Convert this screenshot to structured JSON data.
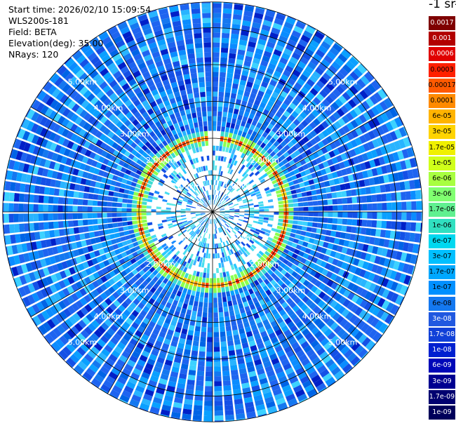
{
  "header": {
    "start_time": "Start time: 2026/02/10 15:09:54",
    "instrument": "WLS200s-181",
    "field": "Field: BETA",
    "elevation": "Elevation(deg): 35.00",
    "nrays": "NRays: 120"
  },
  "colorbar": {
    "unit_title": "-1 sr-",
    "labels": [
      "0.0017",
      "0.001",
      "0.0006",
      "0.0003",
      "0.00017",
      "0.0001",
      "6e-05",
      "3e-05",
      "1.7e-05",
      "1e-05",
      "6e-06",
      "3e-06",
      "1.7e-06",
      "1e-06",
      "6e-07",
      "3e-07",
      "1.7e-07",
      "1e-07",
      "6e-08",
      "3e-08",
      "1.7e-08",
      "1e-08",
      "6e-09",
      "3e-09",
      "1.7e-09",
      "1e-09"
    ],
    "colors": [
      "#7f0000",
      "#b20000",
      "#e00000",
      "#ff2000",
      "#ff5a00",
      "#ff8a00",
      "#ffb400",
      "#ffd400",
      "#f0f000",
      "#d0ff1a",
      "#a8ff40",
      "#80ff70",
      "#60f090",
      "#30e0c0",
      "#00d8f0",
      "#00c0ff",
      "#00a8ff",
      "#0090ff",
      "#1478f0",
      "#2058e0",
      "#1040d8",
      "#0020d0",
      "#0008b8",
      "#000090",
      "#000070",
      "#00005a"
    ]
  },
  "chart_data": {
    "type": "polar-ppi",
    "field": "BETA",
    "range_rings_km": [
      1,
      2,
      3,
      4,
      5
    ],
    "ring_labels": [
      "1.00km",
      "2.00km",
      "3.00km",
      "4.00km",
      "5.00km"
    ],
    "n_rays": 120,
    "elevation_deg": 35.0,
    "max_range_km": 5.7,
    "spoke_angles_deg": [
      0,
      30,
      60,
      90,
      120,
      150,
      180,
      210,
      240,
      270,
      300,
      330
    ],
    "background_band_km": [
      2.2,
      5.7
    ],
    "inner_band_km": [
      0.2,
      1.75
    ],
    "peak_ring_km": [
      1.75,
      2.2
    ],
    "peak_gap_azimuth_deg": 4
  }
}
